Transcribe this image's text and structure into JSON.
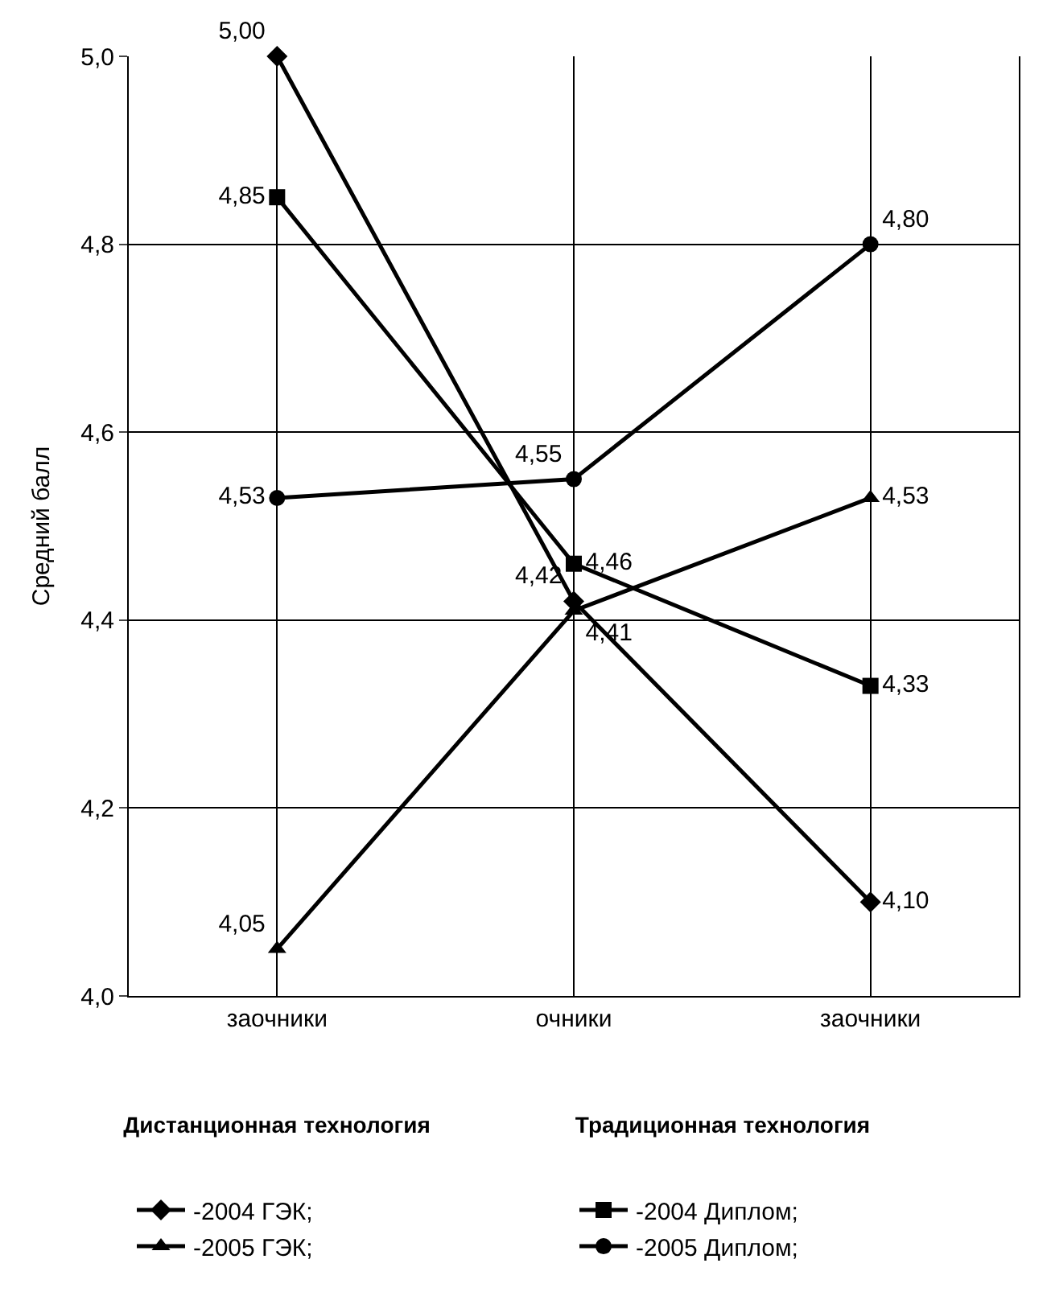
{
  "chart_data": {
    "type": "line",
    "ylabel": "Средний балл",
    "categories": [
      "заочники",
      "очники",
      "заочники"
    ],
    "series": [
      {
        "name": "-2004 ГЭК;",
        "color": "#000000",
        "marker": "diamond",
        "values": [
          5.0,
          4.42,
          4.1
        ],
        "value_labels": [
          "5,00",
          "4,42",
          "4,10"
        ]
      },
      {
        "name": "-2004 Диплом;",
        "color": "#000000",
        "marker": "square",
        "values": [
          4.85,
          4.46,
          4.33
        ],
        "value_labels": [
          "4,85",
          "4,46",
          "4,33"
        ]
      },
      {
        "name": "-2005 ГЭК;",
        "color": "#000000",
        "marker": "triangle",
        "values": [
          4.05,
          4.41,
          4.53
        ],
        "value_labels": [
          "4,05",
          "4,41",
          "4,53"
        ]
      },
      {
        "name": "-2005 Диплом;",
        "color": "#000000",
        "marker": "circle",
        "values": [
          4.53,
          4.55,
          4.8
        ],
        "value_labels": [
          "4,53",
          "4,55",
          "4,80"
        ]
      }
    ],
    "ylim": [
      4.0,
      5.0
    ],
    "yticks": [
      {
        "value": 4.0,
        "label": "4,0"
      },
      {
        "value": 4.2,
        "label": "4,2"
      },
      {
        "value": 4.4,
        "label": "4,4"
      },
      {
        "value": 4.6,
        "label": "4,6"
      },
      {
        "value": 4.8,
        "label": "4,8"
      },
      {
        "value": 5.0,
        "label": "5,0"
      }
    ],
    "annotations": [
      "Дистанционная технология",
      "Традиционная технология"
    ],
    "grid": true,
    "legend": "bottom",
    "line_style": "solid"
  }
}
